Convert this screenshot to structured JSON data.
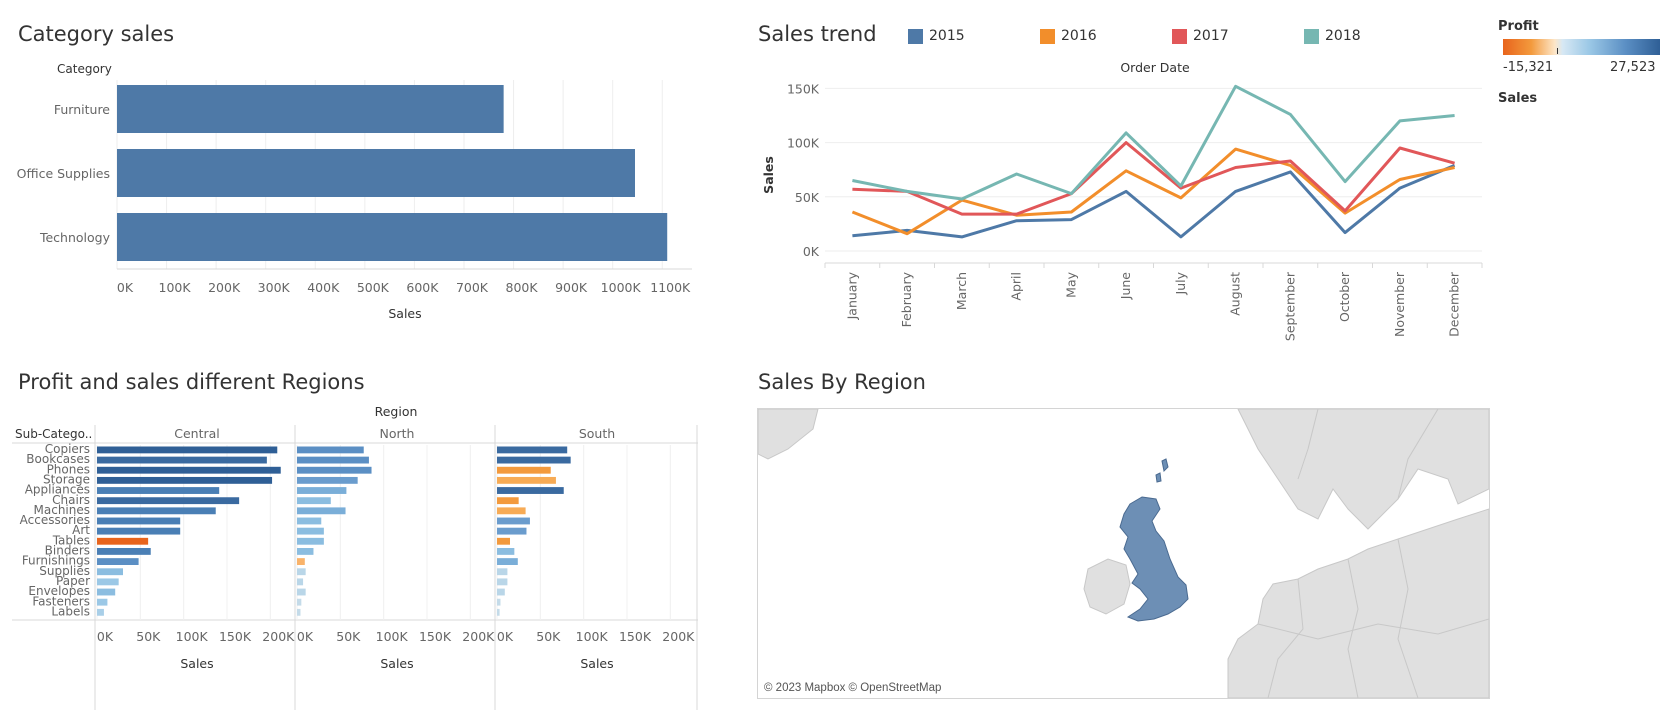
{
  "colors": {
    "bar_blue": "#4e79a7",
    "y2015": "#4e79a7",
    "y2016": "#f28e2b",
    "y2017": "#e15759",
    "y2018": "#76b7b2",
    "map_land": "#e0e0e0",
    "map_uk": "#6d8fb5"
  },
  "category_sales": {
    "title": "Category sales",
    "y_header": "Category",
    "xlabel": "Sales",
    "ticks": [
      "0K",
      "100K",
      "200K",
      "300K",
      "400K",
      "500K",
      "600K",
      "700K",
      "800K",
      "900K",
      "1000K",
      "1100K"
    ]
  },
  "sales_trend": {
    "title": "Sales  trend",
    "top_label": "Order Date",
    "ylabel": "Sales",
    "y_ticks": [
      "0K",
      "50K",
      "100K",
      "150K"
    ],
    "legend": [
      "2015",
      "2016",
      "2017",
      "2018"
    ]
  },
  "profit_legend": {
    "title": "Profit",
    "min": "-15,321",
    "max": "27,523",
    "size_title": "Sales"
  },
  "profit_regions": {
    "title": "Profit and sales different Regions",
    "top_label": "Region",
    "row_header": "Sub-Catego..",
    "xlabel": "Sales",
    "ticks": [
      "0K",
      "50K",
      "100K",
      "150K",
      "200K"
    ]
  },
  "sales_by_region": {
    "title": "Sales By Region",
    "credit": "© 2023 Mapbox © OpenStreetMap"
  },
  "chart_data": [
    {
      "type": "bar",
      "orientation": "horizontal",
      "title": "Category sales",
      "ylabel": "Category",
      "xlabel": "Sales",
      "categories": [
        "Furniture",
        "Office Supplies",
        "Technology"
      ],
      "values": [
        780000,
        1045000,
        1110000
      ],
      "xlim": [
        0,
        1160000
      ],
      "grid": true
    },
    {
      "type": "line",
      "title": "Sales  trend",
      "xlabel": "Order Date",
      "ylabel": "Sales",
      "categories": [
        "January",
        "February",
        "March",
        "April",
        "May",
        "June",
        "July",
        "August",
        "September",
        "October",
        "November",
        "December"
      ],
      "ylim": [
        0,
        155000
      ],
      "grid": true,
      "legend": "top",
      "series": [
        {
          "name": "2015",
          "values": [
            14000,
            19000,
            13000,
            28000,
            29000,
            55000,
            13000,
            55000,
            73000,
            17000,
            58000,
            79000
          ]
        },
        {
          "name": "2016",
          "values": [
            36000,
            16000,
            47000,
            33000,
            36000,
            74000,
            49000,
            94000,
            79000,
            35000,
            66000,
            77000
          ]
        },
        {
          "name": "2017",
          "values": [
            57000,
            55000,
            34000,
            34000,
            53000,
            100000,
            58000,
            77000,
            83000,
            37000,
            95000,
            81000
          ]
        },
        {
          "name": "2018",
          "values": [
            65000,
            55000,
            48000,
            71000,
            53000,
            109000,
            60000,
            152000,
            126000,
            64000,
            120000,
            125000
          ]
        }
      ]
    },
    {
      "type": "bar",
      "orientation": "horizontal",
      "title": "Profit and sales different Regions",
      "xlabel": "Sales",
      "ylabel": "Sub-Catego..",
      "color_by": "Profit",
      "categories": [
        "Copiers",
        "Bookcases",
        "Phones",
        "Storage",
        "Appliances",
        "Chairs",
        "Machines",
        "Accessories",
        "Art",
        "Tables",
        "Binders",
        "Furnishings",
        "Supplies",
        "Paper",
        "Envelopes",
        "Fasteners",
        "Labels"
      ],
      "xlim": [
        0,
        225000
      ],
      "series": [
        {
          "name": "Central",
          "values": [
            208000,
            196000,
            212000,
            202000,
            141000,
            164000,
            137000,
            96000,
            96000,
            59000,
            62000,
            48000,
            30000,
            25000,
            21000,
            12000,
            8000
          ],
          "colors": [
            "#2f5f96",
            "#3a6aa0",
            "#2f5f96",
            "#2f5f96",
            "#4a7fb5",
            "#3a6aa0",
            "#4a7fb5",
            "#4a7fb5",
            "#4a7fb5",
            "#e8641c",
            "#4a7fb5",
            "#5b8fc4",
            "#8bbde0",
            "#9bc8e6",
            "#8bbde0",
            "#9bc8e6",
            "#a9cfe8"
          ]
        },
        {
          "name": "North",
          "values": [
            77000,
            83000,
            86000,
            70000,
            57000,
            39000,
            56000,
            28000,
            31000,
            31000,
            19000,
            9000,
            10000,
            7000,
            10000,
            5000,
            4000
          ],
          "colors": [
            "#5b8fc4",
            "#5b8fc4",
            "#5b8fc4",
            "#6a9ccd",
            "#7aaed8",
            "#8bbde0",
            "#7aaed8",
            "#8bbde0",
            "#8bbde0",
            "#8bbde0",
            "#8bbde0",
            "#f9b36a",
            "#b9d6e8",
            "#b9d6e8",
            "#b9d6e8",
            "#c4dbe9",
            "#c4dbe9"
          ]
        },
        {
          "name": "South",
          "values": [
            81000,
            85000,
            62000,
            68000,
            77000,
            25000,
            33000,
            38000,
            34000,
            15000,
            20000,
            24000,
            12000,
            12000,
            9000,
            4000,
            3000
          ],
          "colors": [
            "#3a6aa0",
            "#3a6aa0",
            "#f39a3d",
            "#f7ab55",
            "#3a6aa0",
            "#f39a3d",
            "#f7ab55",
            "#6a9ccd",
            "#6a9ccd",
            "#f39a3d",
            "#8bbde0",
            "#7aaed8",
            "#b9d6e8",
            "#b9d6e8",
            "#b9d6e8",
            "#c4dbe9",
            "#c4dbe9"
          ]
        }
      ]
    }
  ]
}
